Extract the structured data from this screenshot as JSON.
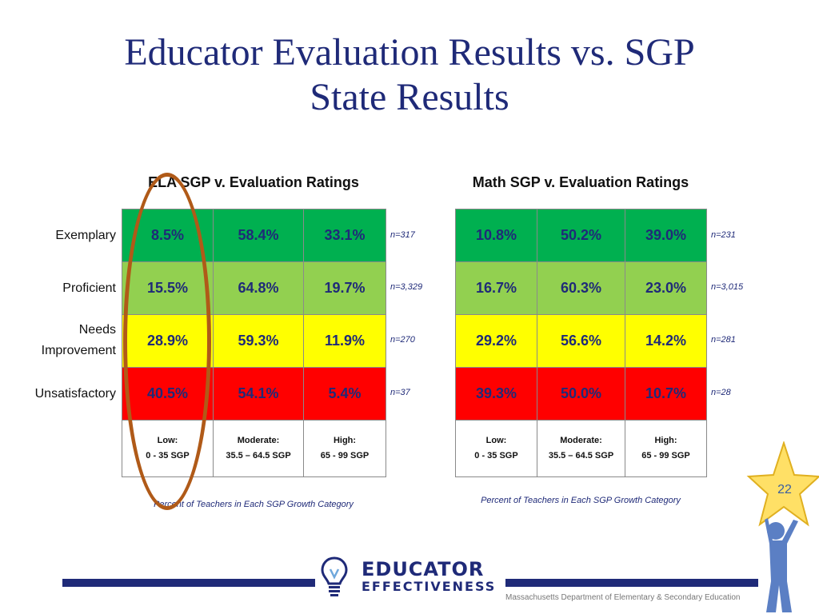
{
  "title": {
    "line1": "Educator Evaluation Results vs. SGP",
    "line2": "State Results"
  },
  "row_labels": [
    "Exemplary",
    "Proficient",
    "Needs",
    "Improvement",
    "Unsatisfactory"
  ],
  "ela": {
    "title": "ELA SGP v. Evaluation Ratings",
    "rows": [
      {
        "values": [
          "8.5%",
          "58.4%",
          "33.1%"
        ],
        "n": "n=317"
      },
      {
        "values": [
          "15.5%",
          "64.8%",
          "19.7%"
        ],
        "n": "n=3,329"
      },
      {
        "values": [
          "28.9%",
          "59.3%",
          "11.9%"
        ],
        "n": "n=270"
      },
      {
        "values": [
          "40.5%",
          "54.1%",
          "5.4%"
        ],
        "n": "n=37"
      }
    ],
    "caption": "Percent of Teachers in Each SGP Growth Category"
  },
  "math": {
    "title": "Math SGP v. Evaluation Ratings",
    "rows": [
      {
        "values": [
          "10.8%",
          "50.2%",
          "39.0%"
        ],
        "n": "n=231"
      },
      {
        "values": [
          "16.7%",
          "60.3%",
          "23.0%"
        ],
        "n": "n=3,015"
      },
      {
        "values": [
          "29.2%",
          "56.6%",
          "14.2%"
        ],
        "n": "n=281"
      },
      {
        "values": [
          "39.3%",
          "50.0%",
          "10.7%"
        ],
        "n": "n=28"
      }
    ],
    "caption": "Percent of Teachers in Each SGP Growth Category"
  },
  "categories": [
    {
      "name": "Low:",
      "range": "0 - 35 SGP"
    },
    {
      "name": "Moderate:",
      "range": "35.5 – 64.5 SGP"
    },
    {
      "name": "High:",
      "range": "65 - 99 SGP"
    }
  ],
  "colors": {
    "exemplary": "#00b050",
    "proficient": "#92d050",
    "needs_improvement": "#ffff00",
    "unsatisfactory": "#ff0000",
    "accent": "#1f2a78",
    "highlight_oval": "#b05a18"
  },
  "logo": {
    "line1": "EDUCATOR",
    "line2": "EFFECTIVENESS",
    "icon": "lightbulb-icon"
  },
  "footer": "Massachusetts Department of Elementary & Secondary  Education",
  "page_number": "22",
  "decoration_icon": "star-person-icon"
}
